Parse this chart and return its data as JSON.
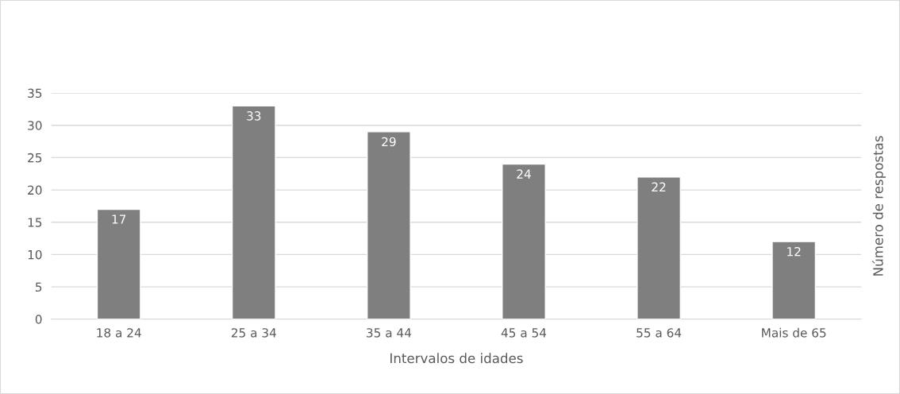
{
  "chart_data": {
    "type": "bar",
    "xlabel": "Intervalos de idades",
    "ylabel": "Número de respostas",
    "categories": [
      "18 a 24",
      "25 a 34",
      "35 a 44",
      "45 a 54",
      "55 a 64",
      "Mais de 65"
    ],
    "values": [
      17,
      33,
      29,
      24,
      22,
      12
    ],
    "color": "#7f7f7f",
    "ylim": [
      0,
      35
    ],
    "yticks": [
      0,
      5,
      10,
      15,
      20,
      25,
      30,
      35
    ],
    "grid": "y",
    "data_labels": true,
    "legend": false
  }
}
